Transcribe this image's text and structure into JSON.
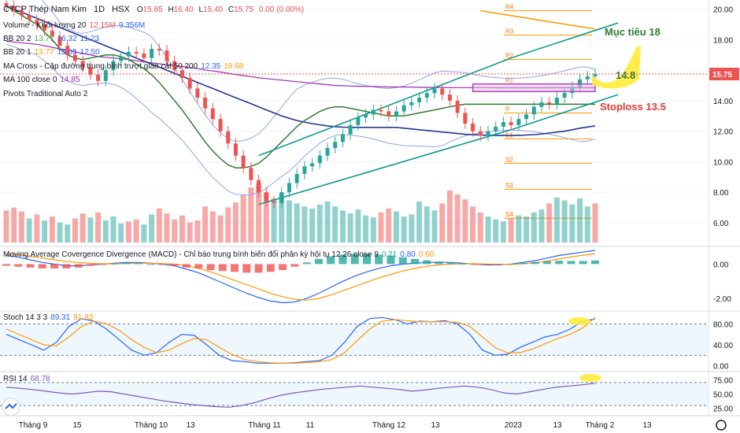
{
  "header": {
    "symbol_name": "CTCP Thép Nam Kim",
    "interval": "1D",
    "exchange": "HSX",
    "ohlc": {
      "o_label": "O",
      "o": "15.85",
      "h_label": "H",
      "h": "16.40",
      "l_label": "L",
      "l": "15.40",
      "c_label": "C",
      "c": "15.75",
      "chg": "0.00 (0.00%)"
    }
  },
  "legends": [
    {
      "label": "Volume - Khối lượng 20",
      "values": [
        "12.15M",
        "9.356M"
      ],
      "colors": [
        "#ef5350",
        "#2962ff"
      ]
    },
    {
      "label": "BB 20 2",
      "values": [
        "13.77",
        "16.32",
        "11.23"
      ],
      "colors": [
        "#4caf50",
        "#2962ff",
        "#2962ff"
      ]
    },
    {
      "label": "BB 20 1",
      "values": [
        "13.77",
        "15.05",
        "12.50"
      ],
      "colors": [
        "#ff9800",
        "#2962ff",
        "#2962ff"
      ]
    },
    {
      "label": "MA Cross - Cập đường trung bình trượt giao cắt 50 200",
      "values": [
        "12.35",
        "18.68"
      ],
      "colors": [
        "#2962ff",
        "#ff9800"
      ]
    },
    {
      "label": "MA 100 close 0",
      "values": [
        "14.85"
      ],
      "colors": [
        "#9c27b0"
      ]
    },
    {
      "label": "Pivots Traditional Auto 2",
      "values": [],
      "colors": []
    }
  ],
  "macd_header": {
    "label": "Moving Average Covergence Divergence (MACD) - Chỉ báo trung bình biến đổi phân kỳ hội tụ 12 26 close 9",
    "values": [
      "0.21",
      "0.80",
      "0.60"
    ],
    "colors": [
      "#26a69a",
      "#2962ff",
      "#ff9800"
    ]
  },
  "stoch_header": {
    "label": "Stoch 14 3 3",
    "values": [
      "89.31",
      "91.83"
    ],
    "colors": [
      "#2962ff",
      "#ff9800"
    ]
  },
  "rsi_header": {
    "label": "RSI 14",
    "values": [
      "68.78"
    ],
    "colors": [
      "#7e57c2"
    ]
  },
  "annotations": {
    "target": "Mục tiêu 18",
    "entry": "14.8",
    "stoploss": "Stoploss 13.5"
  },
  "pivot_labels": [
    "R4",
    "R3",
    "R2",
    "R1",
    "P",
    "S1",
    "S2",
    "S3",
    "S4"
  ],
  "x_axis_labels": [
    "Tháng 9",
    "15",
    "Tháng 10",
    "13",
    "Tháng 11",
    "11",
    "Tháng 12",
    "13",
    "2023",
    "13",
    "Tháng 2",
    "13"
  ],
  "price_badge": "15.75",
  "icons": [
    "tradingview-logo-icon",
    "settings-gear-icon"
  ],
  "chart_data": {
    "type": "line",
    "title": "CTCP Thép Nam Kim · 1D · HSX",
    "price_axis": {
      "ticks": [
        20,
        18,
        16,
        14,
        12,
        10,
        8,
        6
      ],
      "tick_labels": [
        "20.00",
        "18.00",
        "16.00",
        "14.00",
        "12.00",
        "10.00",
        "8.00",
        "6.00"
      ],
      "range": [
        4.5,
        20.5
      ]
    },
    "price_close": [
      20.2,
      19.9,
      19.6,
      19.3,
      19.0,
      18.6,
      18.2,
      17.6,
      17.0,
      16.6,
      16.2,
      15.7,
      15.3,
      16.0,
      16.6,
      16.9,
      17.2,
      17.1,
      16.8,
      17.4,
      17.3,
      16.6,
      16.0,
      15.5,
      14.8,
      14.2,
      13.5,
      12.8,
      12.0,
      11.2,
      10.4,
      9.6,
      8.8,
      8.0,
      7.4,
      7.3,
      8.0,
      8.6,
      9.2,
      9.7,
      9.9,
      10.4,
      10.9,
      11.3,
      11.8,
      12.4,
      12.9,
      13.1,
      13.4,
      13.3,
      13.0,
      13.3,
      13.7,
      13.9,
      14.2,
      14.5,
      14.8,
      14.4,
      14.0,
      13.2,
      12.5,
      12.0,
      11.7,
      12.0,
      12.3,
      12.6,
      12.4,
      12.8,
      13.1,
      13.6,
      13.9,
      13.8,
      14.2,
      14.5,
      14.9,
      15.4,
      15.6,
      15.75
    ],
    "ma100": [
      17.9,
      17.85,
      17.8,
      17.75,
      17.7,
      17.6,
      17.5,
      17.4,
      17.3,
      17.2,
      17.1,
      17.0,
      16.9,
      16.85,
      16.8,
      16.75,
      16.7,
      16.62,
      16.55,
      16.48,
      16.42,
      16.35,
      16.3,
      16.24,
      16.18,
      16.1,
      16.02,
      15.95,
      15.88,
      15.8,
      15.72,
      15.65,
      15.58,
      15.5,
      15.45,
      15.4,
      15.35,
      15.3,
      15.25,
      15.2,
      15.15,
      15.1,
      15.05,
      15.0,
      14.98,
      14.96,
      14.95,
      14.94,
      14.93,
      14.92,
      14.9,
      14.9,
      14.9,
      14.89,
      14.88,
      14.88,
      14.87,
      14.87,
      14.86,
      14.86,
      14.86,
      14.86,
      14.86,
      14.86,
      14.85,
      14.85,
      14.85,
      14.85,
      14.85,
      14.85,
      14.85,
      14.85,
      14.85,
      14.85,
      14.85,
      14.85,
      14.85,
      14.85
    ],
    "ma50": [
      20.2,
      20.0,
      19.8,
      19.6,
      19.4,
      19.2,
      19.0,
      18.8,
      18.6,
      18.4,
      18.2,
      18.0,
      17.8,
      17.6,
      17.4,
      17.2,
      17.0,
      16.8,
      16.6,
      16.4,
      16.2,
      16.0,
      15.8,
      15.6,
      15.4,
      15.2,
      15.0,
      14.8,
      14.6,
      14.4,
      14.2,
      14.0,
      13.8,
      13.6,
      13.4,
      13.2,
      13.0,
      12.85,
      12.7,
      12.6,
      12.5,
      12.42,
      12.35,
      12.3,
      12.27,
      12.25,
      12.25,
      12.25,
      12.25,
      12.25,
      12.25,
      12.25,
      12.2,
      12.15,
      12.1,
      12.05,
      12.0,
      11.95,
      11.9,
      11.85,
      11.8,
      11.77,
      11.75,
      11.73,
      11.72,
      11.72,
      11.72,
      11.73,
      11.75,
      11.78,
      11.82,
      11.88,
      11.95,
      12.0,
      12.1,
      12.2,
      12.28,
      12.35
    ],
    "bb_basis": [
      20.2,
      19.9,
      19.6,
      19.3,
      19.0,
      18.5,
      18.0,
      17.4,
      17.0,
      16.8,
      16.7,
      16.8,
      16.9,
      17.0,
      17.0,
      16.9,
      16.7,
      16.4,
      16.1,
      15.7,
      15.2,
      14.6,
      14.0,
      13.4,
      12.7,
      12.0,
      11.3,
      10.7,
      10.2,
      9.8,
      9.6,
      9.6,
      9.7,
      9.9,
      10.3,
      10.8,
      11.3,
      11.8,
      12.3,
      12.7,
      13.0,
      13.3,
      13.5,
      13.6,
      13.6,
      13.5,
      13.4,
      13.3,
      13.2,
      13.1,
      13.0,
      13.0,
      13.0,
      13.1,
      13.2,
      13.3,
      13.4,
      13.5,
      13.6,
      13.7,
      13.77,
      13.77,
      13.77,
      13.77,
      13.77,
      13.77,
      13.77,
      13.77,
      13.77,
      13.77,
      13.77,
      13.77,
      13.77,
      13.77,
      13.77,
      13.77,
      13.77,
      13.77
    ],
    "channel": {
      "upper": [
        [
          33,
          10.4
        ],
        [
          66,
          16.8
        ],
        [
          80,
          19.1
        ]
      ],
      "lower": [
        [
          33,
          7.2
        ],
        [
          66,
          12.1
        ],
        [
          80,
          14.4
        ]
      ]
    },
    "pivot_levels": {
      "R4": 19.9,
      "R3": 18.3,
      "R2": 16.7,
      "R1": 15.1,
      "P": 13.2,
      "S1": 11.5,
      "S2": 9.9,
      "S3": 8.2,
      "S4": 6.3
    },
    "volume": [
      3.2,
      3.5,
      3.1,
      2.4,
      2.8,
      2.2,
      2.6,
      2.0,
      1.8,
      2.4,
      2.9,
      2.5,
      3.0,
      2.2,
      2.6,
      1.9,
      2.1,
      2.3,
      1.8,
      2.8,
      3.4,
      2.9,
      2.3,
      2.7,
      2.0,
      2.2,
      3.6,
      3.1,
      2.7,
      3.5,
      4.0,
      4.8,
      5.5,
      5.9,
      5.0,
      4.4,
      4.9,
      4.2,
      3.9,
      3.6,
      3.4,
      3.8,
      4.1,
      3.6,
      3.2,
      2.9,
      3.3,
      2.7,
      2.5,
      3.0,
      3.4,
      3.1,
      2.6,
      2.8,
      4.1,
      3.6,
      3.2,
      3.9,
      5.2,
      4.8,
      4.3,
      3.6,
      3.0,
      2.6,
      2.3,
      2.1,
      2.4,
      2.7,
      2.6,
      3.0,
      3.3,
      3.9,
      4.5,
      4.2,
      3.8,
      4.4,
      3.6,
      3.9
    ],
    "volume_up": [
      false,
      false,
      false,
      true,
      false,
      true,
      false,
      true,
      true,
      false,
      false,
      true,
      false,
      true,
      true,
      true,
      false,
      false,
      true,
      true,
      false,
      false,
      false,
      false,
      false,
      false,
      false,
      false,
      false,
      false,
      false,
      false,
      false,
      false,
      false,
      true,
      true,
      true,
      true,
      true,
      true,
      true,
      true,
      true,
      true,
      true,
      true,
      true,
      true,
      false,
      false,
      true,
      true,
      true,
      true,
      true,
      true,
      false,
      false,
      false,
      false,
      false,
      false,
      true,
      true,
      true,
      false,
      true,
      true,
      true,
      true,
      false,
      true,
      true,
      true,
      true,
      true,
      false
    ],
    "macd": {
      "ticks": [
        0,
        -2
      ],
      "tick_labels": [
        "0.00",
        "-2.00"
      ],
      "range": [
        -2.5,
        0.8
      ],
      "macd": [
        0.5,
        0.4,
        0.25,
        0.1,
        0.0,
        -0.1,
        -0.1,
        -0.05,
        0.0,
        0.05,
        0.1,
        0.1,
        0.05,
        0.0,
        -0.1,
        -0.3,
        -0.5,
        -0.8,
        -1.1,
        -1.4,
        -1.7,
        -1.95,
        -2.15,
        -2.25,
        -2.2,
        -2.0,
        -1.7,
        -1.35,
        -1.0,
        -0.7,
        -0.45,
        -0.25,
        -0.1,
        0.0,
        0.05,
        0.1,
        0.1,
        0.1,
        0.05,
        0.0,
        -0.05,
        -0.05,
        0.0,
        0.1,
        0.2,
        0.35,
        0.5,
        0.6,
        0.7,
        0.8
      ],
      "signal": [
        0.6,
        0.55,
        0.45,
        0.35,
        0.25,
        0.15,
        0.1,
        0.05,
        0.02,
        0.02,
        0.03,
        0.05,
        0.05,
        0.03,
        0.0,
        -0.1,
        -0.25,
        -0.45,
        -0.7,
        -0.95,
        -1.2,
        -1.45,
        -1.7,
        -1.9,
        -2.05,
        -2.1,
        -2.0,
        -1.8,
        -1.55,
        -1.3,
        -1.05,
        -0.8,
        -0.6,
        -0.4,
        -0.25,
        -0.12,
        -0.05,
        0.0,
        0.02,
        0.02,
        0.0,
        -0.02,
        -0.02,
        0.02,
        0.08,
        0.18,
        0.3,
        0.42,
        0.52,
        0.6
      ],
      "hist": [
        -0.1,
        -0.15,
        -0.2,
        -0.25,
        -0.25,
        -0.25,
        -0.2,
        -0.1,
        -0.02,
        0.03,
        0.07,
        0.05,
        0.0,
        -0.03,
        -0.1,
        -0.2,
        -0.25,
        -0.35,
        -0.4,
        -0.45,
        -0.5,
        -0.5,
        -0.45,
        -0.35,
        -0.15,
        0.1,
        0.3,
        0.45,
        0.55,
        0.6,
        0.6,
        0.55,
        0.5,
        0.4,
        0.3,
        0.22,
        0.15,
        0.1,
        0.03,
        -0.02,
        -0.05,
        -0.03,
        0.02,
        0.08,
        0.12,
        0.17,
        0.2,
        0.18,
        0.18,
        0.21
      ]
    },
    "stoch": {
      "ticks": [
        80,
        40,
        0
      ],
      "tick_labels": [
        "80.00",
        "40.00",
        "0.00"
      ],
      "range": [
        -5,
        100
      ],
      "bands": [
        80,
        20
      ],
      "k": [
        60,
        50,
        40,
        30,
        45,
        75,
        90,
        85,
        70,
        50,
        30,
        20,
        25,
        45,
        60,
        58,
        40,
        20,
        10,
        8,
        5,
        5,
        5,
        6,
        8,
        10,
        20,
        45,
        75,
        90,
        92,
        88,
        80,
        85,
        84,
        86,
        80,
        60,
        30,
        20,
        22,
        35,
        45,
        55,
        60,
        70,
        85,
        89.31
      ],
      "d": [
        70,
        60,
        50,
        40,
        38,
        55,
        75,
        85,
        80,
        68,
        50,
        35,
        25,
        30,
        42,
        52,
        50,
        35,
        22,
        12,
        8,
        6,
        5,
        5,
        6,
        8,
        12,
        25,
        48,
        70,
        85,
        88,
        86,
        84,
        84,
        84,
        83,
        75,
        55,
        35,
        25,
        25,
        32,
        42,
        52,
        60,
        72,
        91.83
      ]
    },
    "rsi": {
      "ticks": [
        75,
        50,
        25
      ],
      "tick_labels": [
        "75.00",
        "50.00",
        "25.00"
      ],
      "range": [
        15,
        85
      ],
      "bands": [
        70,
        30
      ],
      "values": [
        62,
        60,
        58,
        55,
        52,
        50,
        52,
        55,
        54,
        50,
        46,
        42,
        38,
        35,
        32,
        30,
        28,
        27,
        30,
        35,
        42,
        48,
        52,
        55,
        58,
        60,
        62,
        64,
        62,
        60,
        58,
        55,
        57,
        60,
        62,
        64,
        62,
        58,
        52,
        50,
        54,
        58,
        62,
        64,
        66,
        68.78
      ]
    },
    "xlim_bars": [
      0,
      100
    ]
  }
}
